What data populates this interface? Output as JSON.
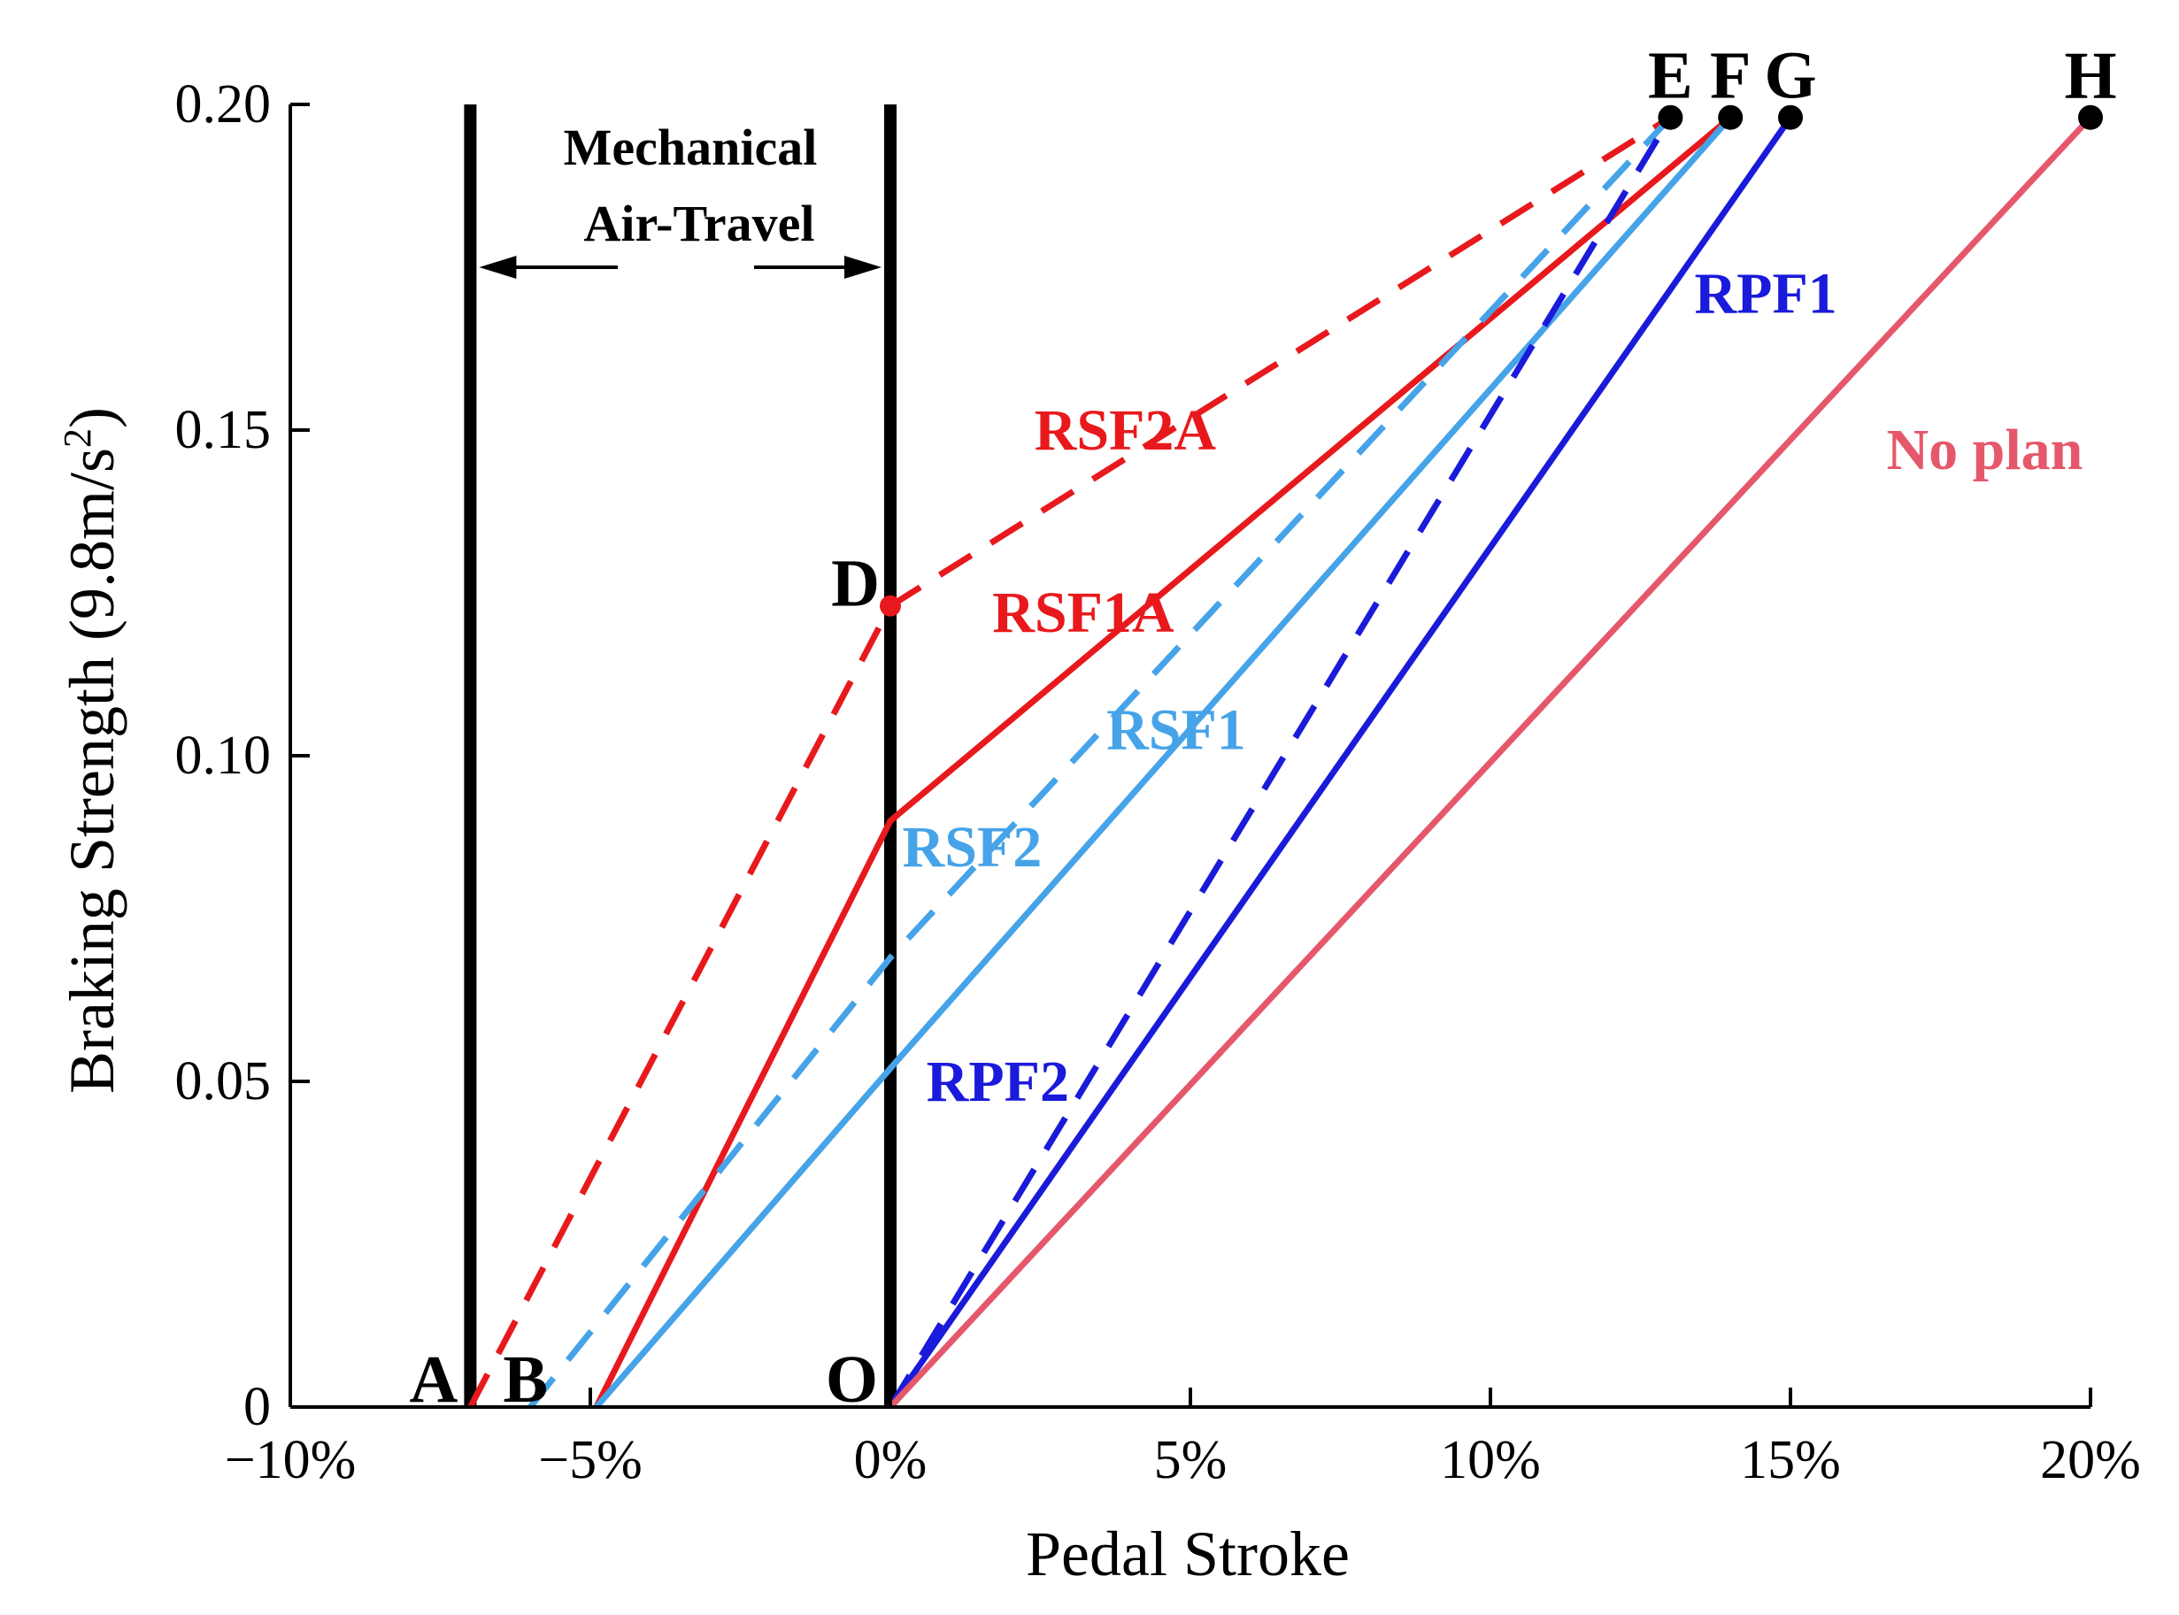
{
  "chart_data": {
    "type": "line",
    "xlabel": "Pedal Stroke",
    "ylabel_main": "Braking Strength (9.8m/s",
    "ylabel_sup": "2",
    "ylabel_end": ")",
    "xlim": [
      -10,
      20
    ],
    "ylim": [
      0,
      0.2
    ],
    "x_ticks": [
      {
        "value": -10,
        "label": "−10%"
      },
      {
        "value": -5,
        "label": "−5%"
      },
      {
        "value": 0,
        "label": "0%"
      },
      {
        "value": 5,
        "label": "5%"
      },
      {
        "value": 10,
        "label": "10%"
      },
      {
        "value": 15,
        "label": "15%"
      },
      {
        "value": 20,
        "label": "20%"
      }
    ],
    "y_ticks": [
      {
        "value": 0,
        "label": "0"
      },
      {
        "value": 0.05,
        "label": "0.05"
      },
      {
        "value": 0.1,
        "label": "0.10"
      },
      {
        "value": 0.15,
        "label": "0.15"
      },
      {
        "value": 0.2,
        "label": "0.20"
      }
    ],
    "vertical_lines": [
      -7,
      0
    ],
    "annotation": {
      "line1": "Mechanical",
      "line2": "Air-Travel",
      "y": 0.175
    },
    "series": [
      {
        "name": "RSF2A",
        "color": "#e8191c",
        "dashed": true,
        "points": [
          [
            -7,
            0
          ],
          [
            0,
            0.123
          ],
          [
            13,
            0.198
          ]
        ],
        "label_at": [
          2.4,
          0.147
        ]
      },
      {
        "name": "RSF1A",
        "color": "#e8191c",
        "dashed": false,
        "points": [
          [
            -4.9,
            0
          ],
          [
            0,
            0.09
          ],
          [
            14,
            0.198
          ]
        ],
        "label_at": [
          1.7,
          0.119
        ]
      },
      {
        "name": "RSF2",
        "color": "#46a3e8",
        "dashed": true,
        "points": [
          [
            -6,
            0
          ],
          [
            0,
            0.069
          ],
          [
            13,
            0.198
          ]
        ],
        "label_at": [
          0.2,
          0.083
        ]
      },
      {
        "name": "RSF1",
        "color": "#46a3e8",
        "dashed": false,
        "points": [
          [
            -4.9,
            0
          ],
          [
            0,
            0.052
          ],
          [
            14,
            0.198
          ]
        ],
        "label_at": [
          3.6,
          0.101
        ]
      },
      {
        "name": "RPF2",
        "color": "#1a1adb",
        "dashed": true,
        "points": [
          [
            0,
            0
          ],
          [
            13,
            0.198
          ]
        ],
        "label_at": [
          0.6,
          0.047
        ]
      },
      {
        "name": "RPF1",
        "color": "#1a1adb",
        "dashed": false,
        "points": [
          [
            0,
            0
          ],
          [
            15,
            0.198
          ]
        ],
        "label_at": [
          13.4,
          0.168
        ]
      },
      {
        "name": "No plan",
        "color": "#e5586b",
        "dashed": false,
        "points": [
          [
            0,
            0
          ],
          [
            20,
            0.198
          ]
        ],
        "label_at": [
          16.6,
          0.144
        ]
      }
    ],
    "points": [
      {
        "label": "A",
        "x": -7,
        "y": 0,
        "marker": false,
        "color": "#000000"
      },
      {
        "label": "B",
        "x": -5.5,
        "y": 0,
        "marker": false,
        "color": "#000000"
      },
      {
        "label": "O",
        "x": 0,
        "y": 0,
        "marker": false,
        "color": "#000000"
      },
      {
        "label": "D",
        "x": 0,
        "y": 0.123,
        "marker": true,
        "color": "#e8191c"
      },
      {
        "label": "E",
        "x": 13,
        "y": 0.198,
        "marker": true,
        "color": "#000000"
      },
      {
        "label": "F",
        "x": 14,
        "y": 0.198,
        "marker": true,
        "color": "#000000"
      },
      {
        "label": "G",
        "x": 15,
        "y": 0.198,
        "marker": true,
        "color": "#000000"
      },
      {
        "label": "H",
        "x": 20,
        "y": 0.198,
        "marker": true,
        "color": "#000000"
      }
    ]
  }
}
